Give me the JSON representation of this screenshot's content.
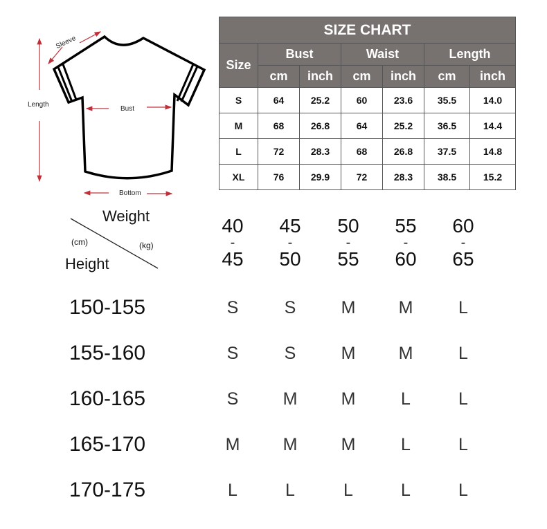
{
  "diagram": {
    "labels": {
      "sleeve": "Sleeve",
      "length": "Length",
      "bust": "Bust",
      "bottom": "Bottom"
    },
    "arrow_color": "#c0303a"
  },
  "size_chart": {
    "title": "SIZE CHART",
    "size_header": "Size",
    "groups": [
      "Bust",
      "Waist",
      "Length"
    ],
    "units": [
      "cm",
      "inch",
      "cm",
      "inch",
      "cm",
      "inch"
    ],
    "rows": [
      {
        "size": "S",
        "values": [
          "64",
          "25.2",
          "60",
          "23.6",
          "35.5",
          "14.0"
        ]
      },
      {
        "size": "M",
        "values": [
          "68",
          "26.8",
          "64",
          "25.2",
          "36.5",
          "14.4"
        ]
      },
      {
        "size": "L",
        "values": [
          "72",
          "28.3",
          "68",
          "26.8",
          "37.5",
          "14.8"
        ]
      },
      {
        "size": "XL",
        "values": [
          "76",
          "29.9",
          "72",
          "28.3",
          "38.5",
          "15.2"
        ]
      }
    ],
    "header_color": "#777270"
  },
  "fit_chart": {
    "corner": {
      "weight": "Weight",
      "weight_unit": "(kg)",
      "height": "Height",
      "height_unit": "(cm)"
    },
    "weights": [
      {
        "from": "40",
        "to": "45"
      },
      {
        "from": "45",
        "to": "50"
      },
      {
        "from": "50",
        "to": "55"
      },
      {
        "from": "55",
        "to": "60"
      },
      {
        "from": "60",
        "to": "65"
      }
    ],
    "separator": "-",
    "rows": [
      {
        "height": "150-155",
        "sizes": [
          "S",
          "S",
          "M",
          "M",
          "L"
        ]
      },
      {
        "height": "155-160",
        "sizes": [
          "S",
          "S",
          "M",
          "M",
          "L"
        ]
      },
      {
        "height": "160-165",
        "sizes": [
          "S",
          "M",
          "M",
          "L",
          "L"
        ]
      },
      {
        "height": "165-170",
        "sizes": [
          "M",
          "M",
          "M",
          "L",
          "L"
        ]
      },
      {
        "height": "170-175",
        "sizes": [
          "L",
          "L",
          "L",
          "L",
          "L"
        ]
      }
    ]
  }
}
